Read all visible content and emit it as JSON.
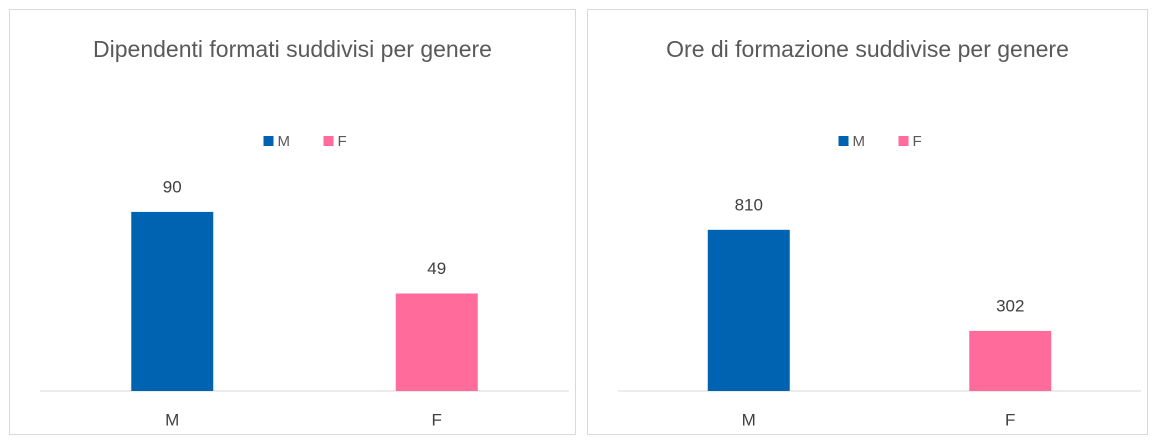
{
  "chart_data": [
    {
      "type": "bar",
      "title": "Dipendenti formati suddivisi per genere",
      "categories": [
        "M",
        "F"
      ],
      "values": [
        90,
        49
      ],
      "colors": [
        "#0063b1",
        "#ff6b9a"
      ],
      "ylim": [
        0,
        100
      ],
      "legend": "top"
    },
    {
      "type": "bar",
      "title": "Ore di formazione suddivise per genere",
      "categories": [
        "M",
        "F"
      ],
      "values": [
        810,
        302
      ],
      "colors": [
        "#0063b1",
        "#ff6b9a"
      ],
      "ylim": [
        0,
        1000
      ],
      "legend": "top"
    }
  ]
}
